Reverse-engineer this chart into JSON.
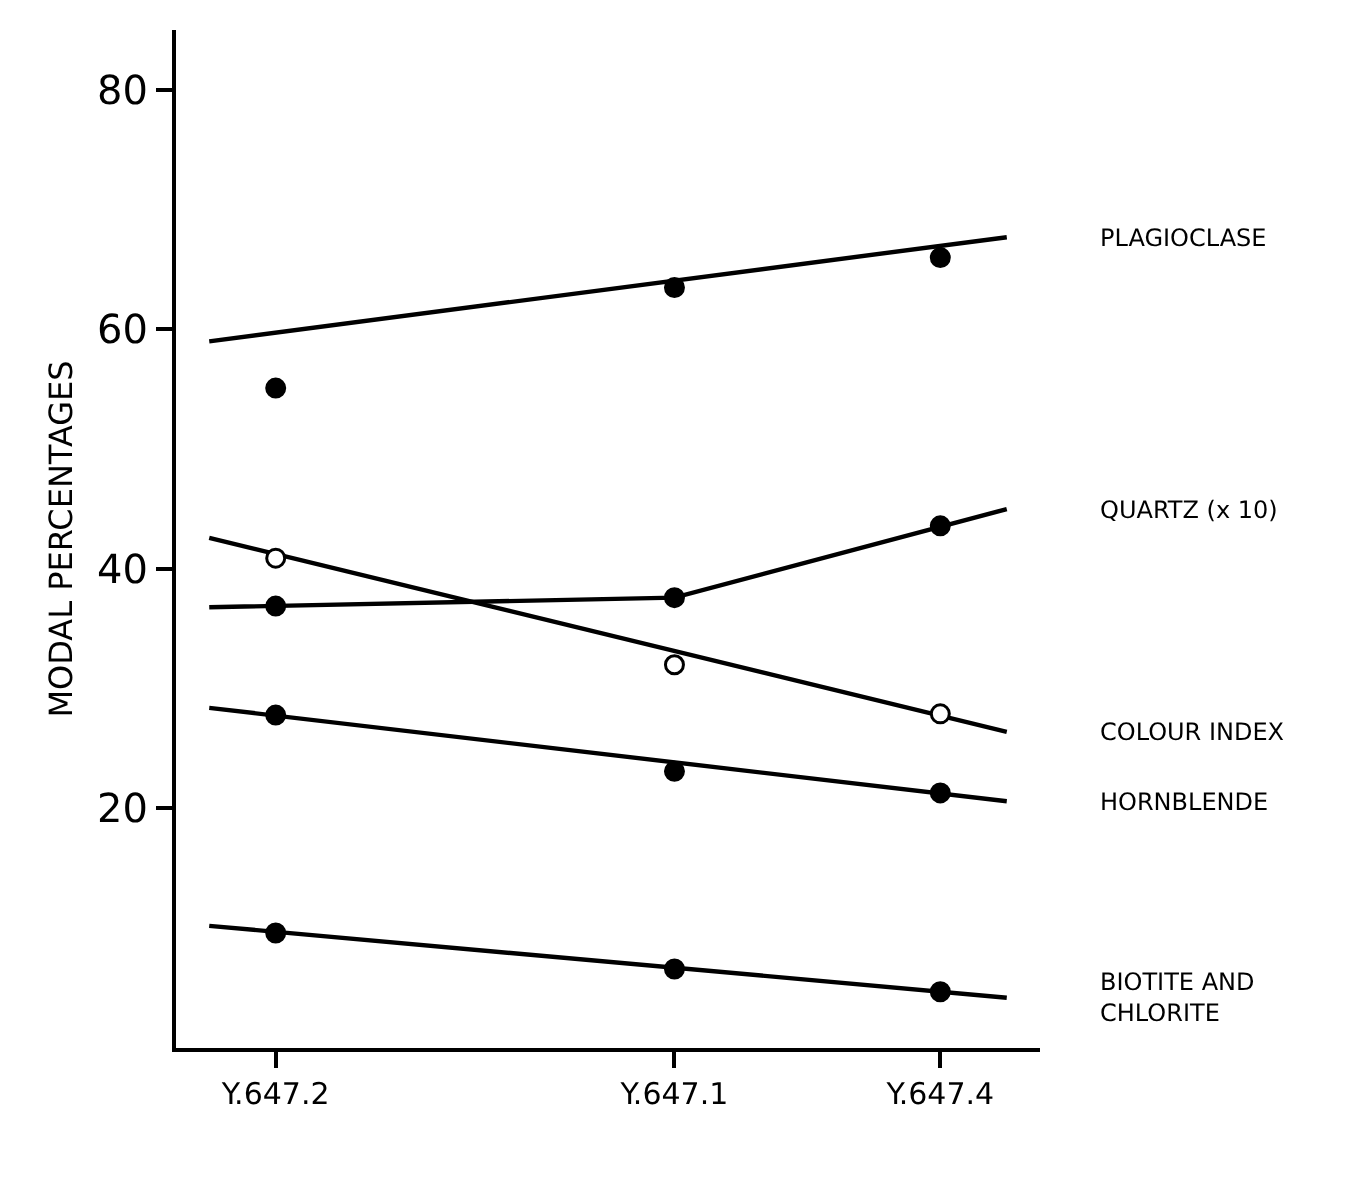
{
  "chart_data": {
    "type": "line",
    "ylabel": "MODAL PERCENTAGES",
    "categories": [
      null,
      "Y.647.2",
      null,
      null,
      null,
      null,
      null,
      "Y.647.1",
      null,
      null,
      null,
      "Y.647.4",
      null
    ],
    "ylim": [
      0,
      85
    ],
    "yticks": [
      20,
      40,
      60,
      80
    ],
    "legend": false,
    "series": [
      {
        "name": "PLAGIOCLASE",
        "color": "#000000",
        "marker": "none",
        "values": [
          59.0,
          null,
          null,
          null,
          null,
          null,
          null,
          null,
          null,
          null,
          null,
          null,
          67.7
        ]
      },
      {
        "type": "scatter",
        "color": "#000000",
        "marker": "circle",
        "values": [
          null,
          55.1,
          null,
          null,
          null,
          null,
          null,
          63.5,
          null,
          null,
          null,
          66.0,
          null
        ]
      },
      {
        "name": "QUARTZ (x 10)",
        "color": "#000000",
        "marker": "none",
        "values": [
          36.8,
          null,
          null,
          null,
          null,
          null,
          null,
          37.6,
          null,
          null,
          null,
          null,
          45.0
        ]
      },
      {
        "type": "scatter",
        "color": "#000000",
        "marker": "circle",
        "values": [
          null,
          36.9,
          null,
          null,
          null,
          null,
          null,
          37.6,
          null,
          null,
          null,
          43.6,
          null
        ]
      },
      {
        "name": "COLOUR INDEX",
        "color": "#000000",
        "marker": "none",
        "values": [
          42.6,
          null,
          null,
          null,
          null,
          null,
          null,
          null,
          null,
          null,
          null,
          null,
          26.4
        ]
      },
      {
        "type": "scatter",
        "color": "#ffffff",
        "marker": "circle",
        "values": [
          null,
          40.9,
          null,
          null,
          null,
          null,
          null,
          32.0,
          null,
          null,
          null,
          27.9,
          null
        ]
      },
      {
        "name": "HORNBLENDE",
        "color": "#000000",
        "marker": "none",
        "values": [
          28.4,
          null,
          null,
          null,
          null,
          null,
          null,
          null,
          null,
          null,
          null,
          null,
          20.6
        ]
      },
      {
        "type": "scatter",
        "color": "#000000",
        "marker": "circle",
        "values": [
          null,
          27.8,
          null,
          null,
          null,
          null,
          null,
          23.1,
          null,
          null,
          null,
          21.3,
          null
        ]
      },
      {
        "name": "BIOTITE AND\nCHLORITE",
        "color": "#000000",
        "marker": "none",
        "values": [
          10.2,
          null,
          null,
          null,
          null,
          null,
          null,
          null,
          null,
          null,
          null,
          null,
          4.2
        ]
      },
      {
        "type": "scatter",
        "color": "#000000",
        "marker": "circle",
        "values": [
          null,
          9.6,
          null,
          null,
          null,
          null,
          null,
          6.6,
          null,
          null,
          null,
          4.7,
          null
        ]
      }
    ]
  }
}
